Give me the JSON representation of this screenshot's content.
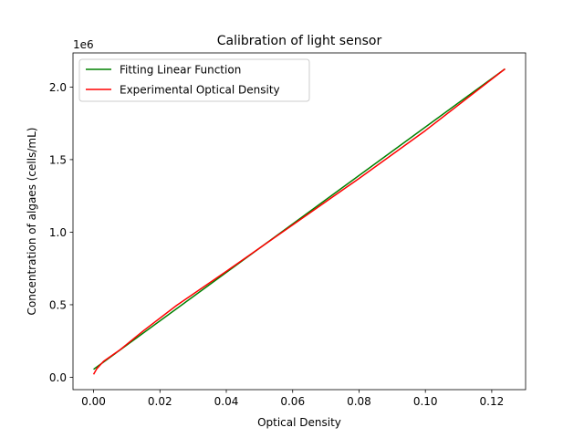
{
  "chart_data": {
    "type": "line",
    "title": "Calibration of light sensor",
    "xlabel": "Optical Density",
    "ylabel": "Concentration of algaes (cells/mL)",
    "y_offset_label": "1e6",
    "xlim": [
      -0.0062,
      0.1302
    ],
    "ylim": [
      -85000,
      2235000
    ],
    "x_ticks": [
      0.0,
      0.02,
      0.04,
      0.06,
      0.08,
      0.1,
      0.12
    ],
    "x_tick_labels": [
      "0.00",
      "0.02",
      "0.04",
      "0.06",
      "0.08",
      "0.10",
      "0.12"
    ],
    "y_ticks": [
      0,
      500000,
      1000000,
      1500000,
      2000000
    ],
    "y_tick_labels": [
      "0.0",
      "0.5",
      "1.0",
      "1.5",
      "2.0"
    ],
    "grid": false,
    "legend_position": "top-left",
    "series": [
      {
        "name": "Fitting Linear Function",
        "color": "#008000",
        "x": [
          0.0,
          0.124
        ],
        "y": [
          55000,
          2125000
        ]
      },
      {
        "name": "Experimental Optical Density",
        "color": "#ff0000",
        "x": [
          0.0,
          0.001,
          0.003,
          0.008,
          0.015,
          0.025,
          0.04,
          0.06,
          0.08,
          0.1,
          0.124
        ],
        "y": [
          20000,
          60000,
          110000,
          190000,
          320000,
          495000,
          730000,
          1050000,
          1370000,
          1700000,
          2125000
        ]
      }
    ]
  }
}
